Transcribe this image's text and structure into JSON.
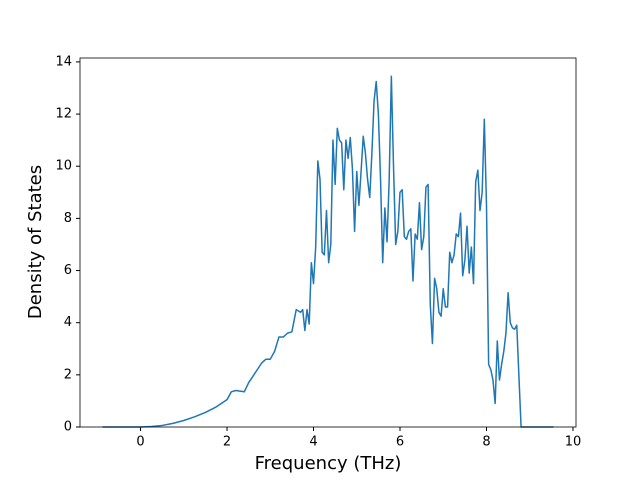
{
  "chart_data": {
    "type": "line",
    "xlabel": "Frequency (THz)",
    "ylabel": "Density of States",
    "x": [
      -0.88,
      0,
      0.25,
      0.5,
      0.75,
      1.0,
      1.25,
      1.5,
      1.75,
      2.0,
      2.1,
      2.2,
      2.4,
      2.5,
      2.6,
      2.7,
      2.8,
      2.9,
      3.0,
      3.1,
      3.2,
      3.3,
      3.4,
      3.5,
      3.6,
      3.7,
      3.75,
      3.8,
      3.85,
      3.9,
      3.95,
      4.0,
      4.05,
      4.1,
      4.15,
      4.2,
      4.25,
      4.3,
      4.35,
      4.4,
      4.45,
      4.5,
      4.55,
      4.6,
      4.65,
      4.7,
      4.75,
      4.8,
      4.85,
      4.9,
      4.95,
      5.0,
      5.05,
      5.1,
      5.15,
      5.2,
      5.25,
      5.3,
      5.35,
      5.4,
      5.45,
      5.5,
      5.55,
      5.6,
      5.65,
      5.7,
      5.75,
      5.8,
      5.85,
      5.9,
      5.95,
      6.0,
      6.05,
      6.1,
      6.15,
      6.2,
      6.25,
      6.3,
      6.35,
      6.4,
      6.45,
      6.5,
      6.55,
      6.6,
      6.65,
      6.7,
      6.75,
      6.8,
      6.85,
      6.9,
      6.95,
      7.0,
      7.05,
      7.1,
      7.15,
      7.2,
      7.25,
      7.3,
      7.35,
      7.4,
      7.45,
      7.5,
      7.55,
      7.6,
      7.65,
      7.7,
      7.75,
      7.8,
      7.85,
      7.9,
      7.95,
      8.0,
      8.05,
      8.1,
      8.15,
      8.2,
      8.25,
      8.3,
      8.35,
      8.4,
      8.45,
      8.5,
      8.55,
      8.6,
      8.65,
      8.7,
      8.8,
      9.55
    ],
    "series": [
      {
        "name": "DOS",
        "color": "#1f77b4",
        "values": [
          0,
          0,
          0.02,
          0.06,
          0.14,
          0.25,
          0.39,
          0.56,
          0.77,
          1.05,
          1.35,
          1.4,
          1.35,
          1.7,
          1.95,
          2.2,
          2.45,
          2.6,
          2.6,
          2.9,
          3.45,
          3.45,
          3.6,
          3.65,
          4.5,
          4.4,
          4.5,
          3.7,
          4.5,
          3.95,
          6.3,
          5.5,
          6.9,
          10.2,
          9.5,
          6.7,
          6.6,
          8.3,
          6.3,
          7.0,
          11.0,
          9.3,
          11.45,
          11.0,
          10.9,
          9.1,
          11.0,
          10.3,
          11.1,
          9.9,
          7.5,
          9.8,
          8.5,
          9.8,
          11.15,
          10.5,
          9.5,
          8.8,
          10.5,
          12.5,
          13.25,
          12.0,
          9.5,
          6.3,
          8.4,
          7.1,
          9.5,
          13.45,
          10.0,
          7.0,
          7.5,
          9.0,
          9.1,
          7.3,
          7.2,
          7.5,
          7.6,
          5.6,
          7.4,
          7.2,
          8.6,
          6.8,
          7.3,
          9.2,
          9.3,
          4.7,
          3.2,
          5.7,
          5.3,
          4.4,
          4.25,
          5.3,
          4.6,
          4.6,
          6.7,
          6.3,
          6.6,
          7.4,
          7.3,
          8.2,
          5.8,
          6.4,
          7.7,
          5.9,
          6.9,
          5.5,
          9.4,
          9.85,
          8.3,
          9.0,
          11.8,
          8.5,
          2.4,
          2.2,
          1.8,
          0.9,
          3.3,
          1.8,
          2.4,
          2.9,
          3.6,
          5.15,
          4.0,
          3.8,
          3.75,
          3.9,
          0,
          0
        ]
      }
    ],
    "xlim": [
      -1.4,
      10.07
    ],
    "xticks": [
      0,
      2,
      4,
      6,
      8,
      10
    ],
    "ylim": [
      0,
      14.15
    ],
    "yticks": [
      0,
      2,
      4,
      6,
      8,
      10,
      12,
      14
    ]
  }
}
